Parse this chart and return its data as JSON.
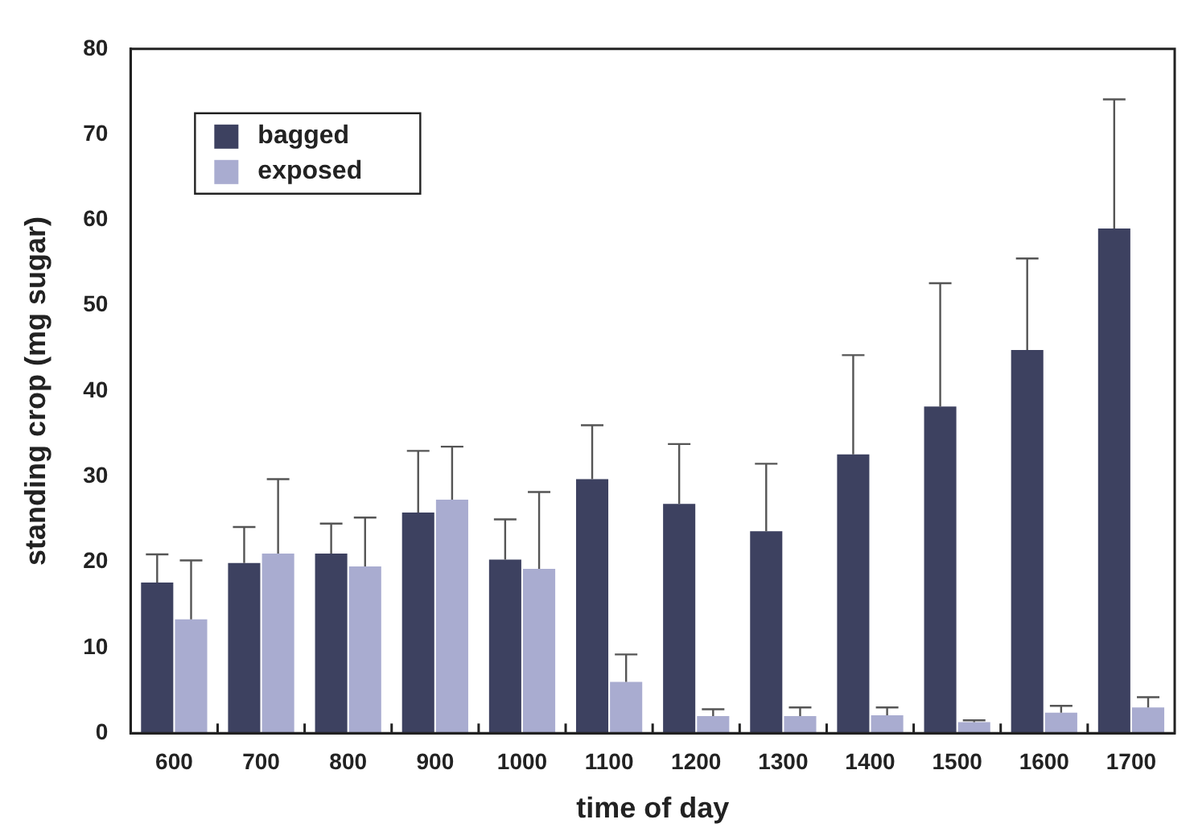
{
  "chart_data": {
    "type": "bar",
    "xlabel": "time of day",
    "ylabel": "standing crop (mg sugar)",
    "categories": [
      "600",
      "700",
      "800",
      "900",
      "1000",
      "1100",
      "1200",
      "1300",
      "1400",
      "1500",
      "1600",
      "1700"
    ],
    "series": [
      {
        "name": "bagged",
        "color": "#3d4160",
        "values": [
          17.6,
          19.9,
          21.0,
          25.8,
          20.3,
          29.7,
          26.8,
          23.6,
          32.6,
          38.2,
          44.8,
          59.0
        ],
        "errors": [
          [
            17.6,
            20.9
          ],
          [
            19.9,
            24.1
          ],
          [
            21.0,
            24.5
          ],
          [
            25.8,
            33.0
          ],
          [
            20.3,
            25.0
          ],
          [
            29.7,
            36.0
          ],
          [
            26.8,
            33.8
          ],
          [
            23.6,
            31.5
          ],
          [
            32.6,
            44.2
          ],
          [
            38.2,
            52.6
          ],
          [
            44.8,
            55.5
          ],
          [
            59.0,
            74.1
          ]
        ]
      },
      {
        "name": "exposed",
        "color": "#a9acd0",
        "values": [
          13.3,
          21.0,
          19.5,
          27.3,
          19.2,
          6.0,
          2.0,
          2.0,
          2.1,
          1.3,
          2.4,
          3.0
        ],
        "errors": [
          [
            13.3,
            20.2
          ],
          [
            21.0,
            29.7
          ],
          [
            19.5,
            25.2
          ],
          [
            27.3,
            33.5
          ],
          [
            19.2,
            28.2
          ],
          [
            6.0,
            9.2
          ],
          [
            2.0,
            2.8
          ],
          [
            2.0,
            3.0
          ],
          [
            2.1,
            3.0
          ],
          [
            1.3,
            1.5
          ],
          [
            2.4,
            3.2
          ],
          [
            3.0,
            4.2
          ]
        ]
      }
    ],
    "ylim": [
      0,
      80
    ],
    "yticks": [
      0,
      10,
      20,
      30,
      40,
      50,
      60,
      70,
      80
    ],
    "grid": false,
    "legend": "top left"
  }
}
